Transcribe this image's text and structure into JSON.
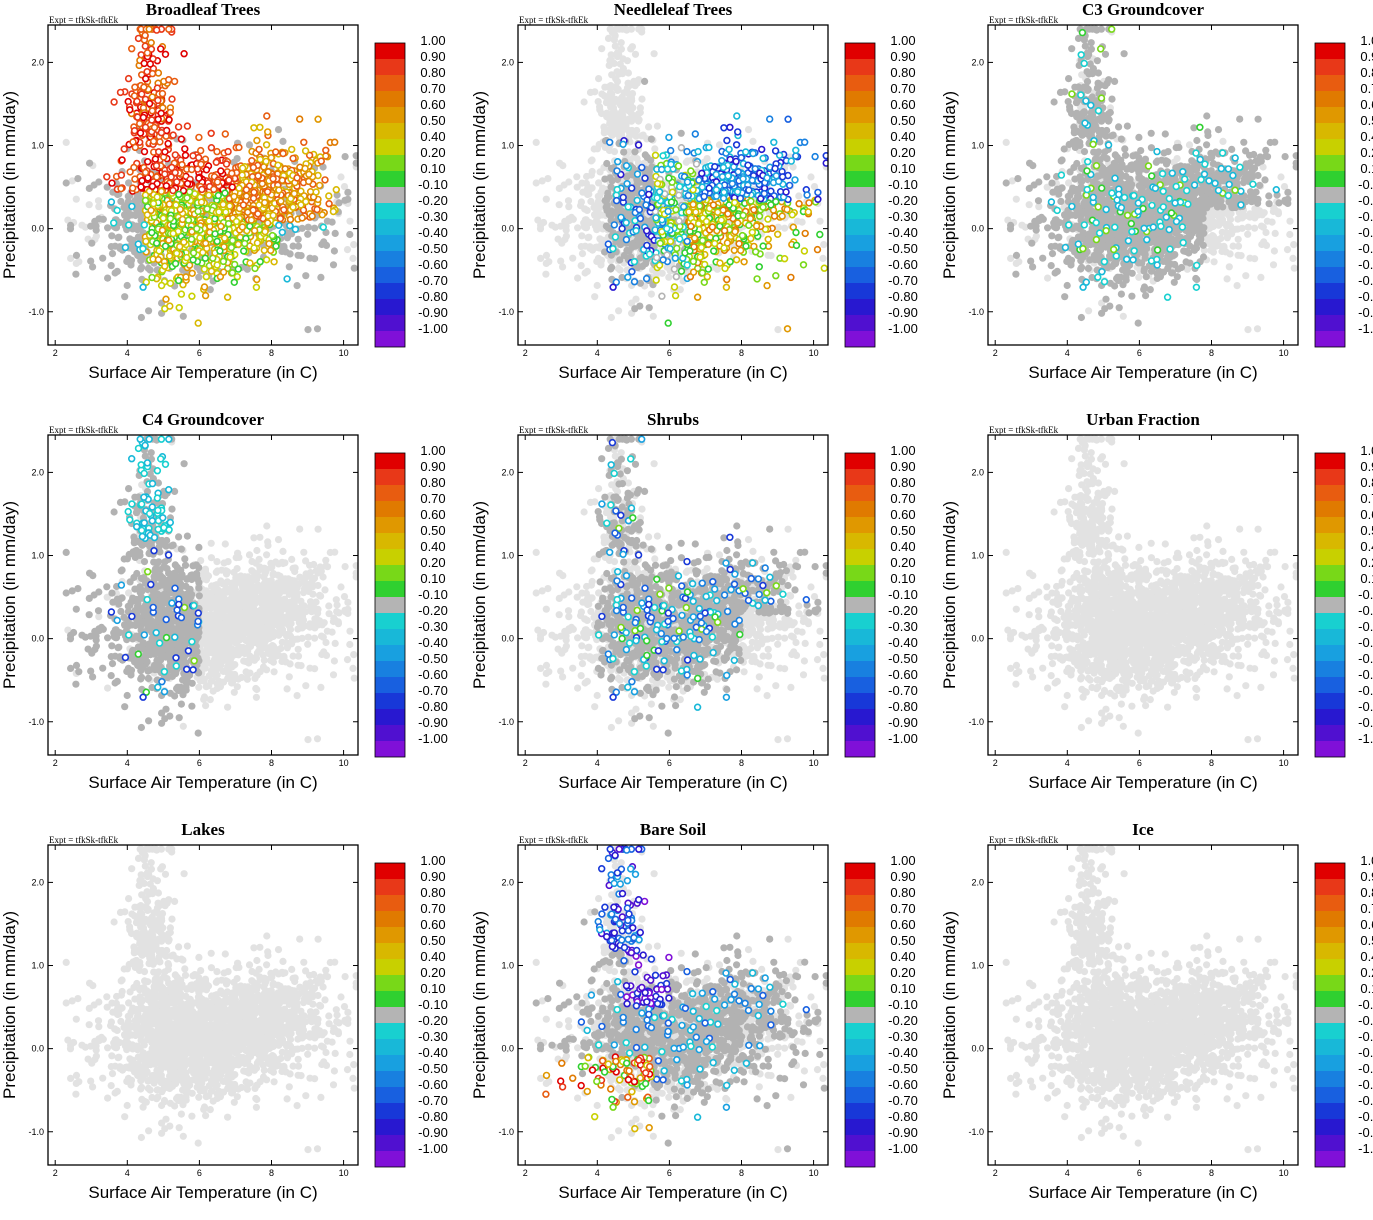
{
  "chart_data": {
    "type": "scatter",
    "expt_label": "Expt = tfkSk-tfkEk",
    "xlabel": "Surface Air Temperature (in C)",
    "ylabel": "Precipitation (in mm/day)",
    "xlim": [
      1.8,
      10.4
    ],
    "ylim": [
      -1.4,
      2.45
    ],
    "xticks": [
      "2",
      "4",
      "6",
      "8",
      "10"
    ],
    "xtick_values": [
      2,
      4,
      6,
      8,
      10
    ],
    "yticks": [
      "-1.0",
      "0.0",
      "1.0",
      "2.0"
    ],
    "ytick_values": [
      -1,
      0,
      1,
      2
    ],
    "colorbar": {
      "labels": [
        "1.00",
        "0.90",
        "0.80",
        "0.70",
        "0.60",
        "0.50",
        "0.40",
        "0.20",
        "0.10",
        "-0.10",
        "-0.20",
        "-0.30",
        "-0.40",
        "-0.50",
        "-0.60",
        "-0.70",
        "-0.80",
        "-0.90",
        "-1.00"
      ],
      "colors": [
        "#e00000",
        "#e83818",
        "#e85c10",
        "#e07a00",
        "#e09800",
        "#d8b800",
        "#c8d000",
        "#78d818",
        "#30d030",
        "#b4b4b4",
        "#18d0d0",
        "#18b8d8",
        "#18a0e0",
        "#1880e0",
        "#1860e0",
        "#1838d8",
        "#2818d0",
        "#5010d0",
        "#8010d8"
      ]
    },
    "panels": [
      {
        "title": "Broadleaf Trees",
        "pattern": "broadleaf"
      },
      {
        "title": "Needleleaf Trees",
        "pattern": "needleleaf"
      },
      {
        "title": "C3 Groundcover",
        "pattern": "c3"
      },
      {
        "title": "C4 Groundcover",
        "pattern": "c4"
      },
      {
        "title": "Shrubs",
        "pattern": "shrubs"
      },
      {
        "title": "Urban Fraction",
        "pattern": "none"
      },
      {
        "title": "Lakes",
        "pattern": "none"
      },
      {
        "title": "Bare Soil",
        "pattern": "baresoil"
      },
      {
        "title": "Ice",
        "pattern": "none"
      }
    ],
    "point_cloud_note": "approx 2500 points per panel; x ~ 2-10.4 C, y ~ -1.4-2.4 mm/day; light gray = not significant"
  }
}
